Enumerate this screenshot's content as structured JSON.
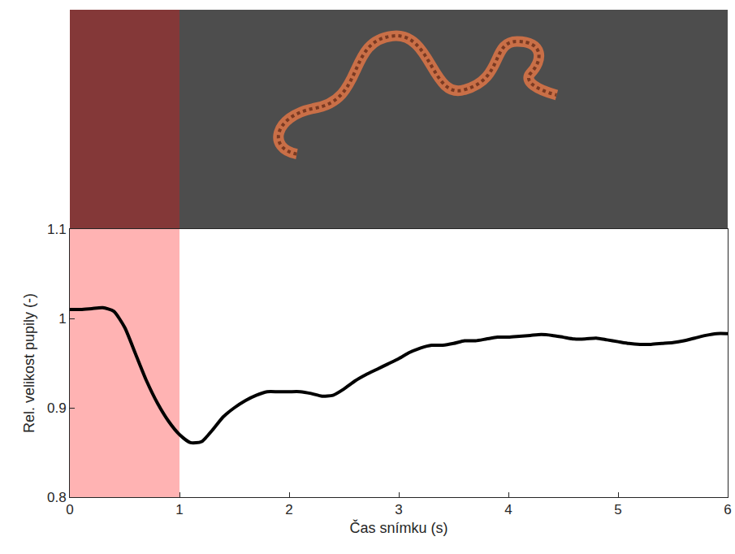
{
  "chart_data": {
    "type": "line",
    "x_label": "Čas snímku (s)",
    "y_label": "Rel. velikost pupily (-)",
    "x": [
      0,
      0.1,
      0.2,
      0.3,
      0.4,
      0.5,
      0.6,
      0.7,
      0.8,
      0.9,
      1.0,
      1.1,
      1.2,
      1.3,
      1.4,
      1.5,
      1.6,
      1.7,
      1.8,
      1.9,
      2.0,
      2.1,
      2.2,
      2.3,
      2.4,
      2.5,
      2.6,
      2.7,
      2.8,
      2.9,
      3.0,
      3.1,
      3.2,
      3.3,
      3.4,
      3.5,
      3.6,
      3.7,
      3.8,
      3.9,
      4.0,
      4.1,
      4.2,
      4.3,
      4.4,
      4.5,
      4.6,
      4.7,
      4.8,
      4.9,
      5.0,
      5.1,
      5.2,
      5.3,
      5.4,
      5.5,
      5.6,
      5.7,
      5.8,
      5.9,
      6.0
    ],
    "values": [
      1.01,
      1.01,
      1.011,
      1.012,
      1.008,
      0.99,
      0.96,
      0.93,
      0.905,
      0.885,
      0.87,
      0.861,
      0.862,
      0.875,
      0.89,
      0.9,
      0.908,
      0.914,
      0.918,
      0.918,
      0.918,
      0.918,
      0.916,
      0.913,
      0.914,
      0.921,
      0.93,
      0.937,
      0.943,
      0.949,
      0.955,
      0.962,
      0.967,
      0.97,
      0.97,
      0.972,
      0.975,
      0.975,
      0.977,
      0.979,
      0.979,
      0.98,
      0.981,
      0.982,
      0.981,
      0.979,
      0.977,
      0.977,
      0.978,
      0.976,
      0.974,
      0.972,
      0.971,
      0.971,
      0.972,
      0.973,
      0.975,
      0.978,
      0.981,
      0.983,
      0.983
    ],
    "color": "#000000",
    "xlim": [
      0,
      6
    ],
    "ylim": [
      0.8,
      1.1
    ],
    "xticks": [
      0,
      1,
      2,
      3,
      4,
      5,
      6
    ],
    "yticks": [
      0.8,
      0.9,
      1,
      1.1
    ],
    "shaded_region": [
      0,
      1
    ],
    "grid": false
  }
}
